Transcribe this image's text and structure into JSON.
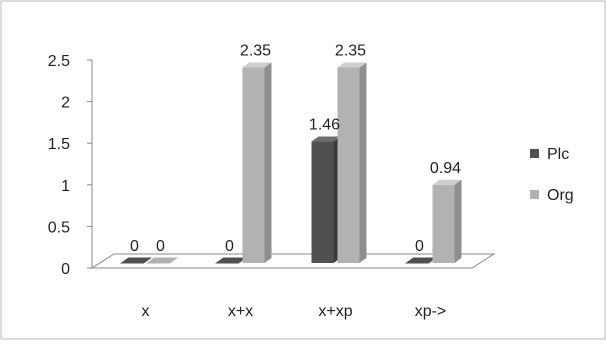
{
  "chart_data": {
    "type": "bar",
    "categories": [
      "x",
      "x+x",
      "x+xp",
      "xp->"
    ],
    "series": [
      {
        "name": "Plc",
        "values": [
          0,
          0,
          1.46,
          0
        ],
        "labels": [
          "0",
          "0",
          "1.46",
          "0"
        ],
        "color": "#505050"
      },
      {
        "name": "Org",
        "values": [
          0,
          2.35,
          2.35,
          0.94
        ],
        "labels": [
          "0",
          "2.35",
          "2.35",
          "0.94"
        ],
        "color": "#b2b2b2"
      }
    ],
    "ylim": [
      0,
      2.5
    ],
    "yticks": [
      "0",
      "0.5",
      "1",
      "1.5",
      "2",
      "2.5"
    ],
    "legend_position": "right",
    "grid": false
  }
}
